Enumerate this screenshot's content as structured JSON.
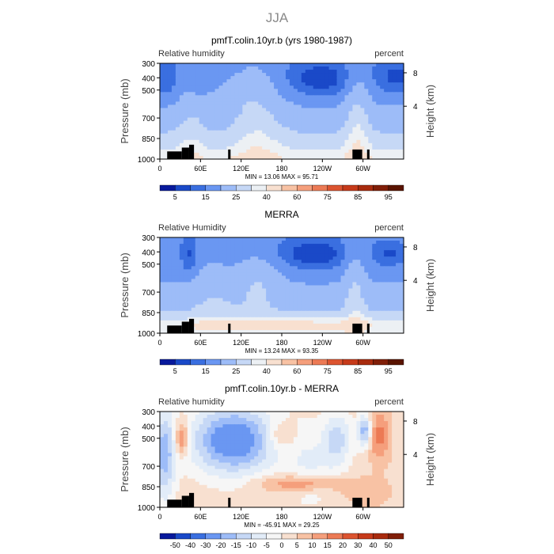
{
  "title": "JJA",
  "chart_data": [
    {
      "type": "heatmap",
      "title": "pmfT.colin.10yr.b (yrs 1980-1987)",
      "left_label": "Relative humidity",
      "right_label": "percent",
      "ylabel": "Pressure (mb)",
      "ylabel_right": "Height (km)",
      "yticks": [
        "300",
        "400",
        "500",
        "700",
        "850",
        "1000"
      ],
      "yticks_right": [
        "8",
        "4"
      ],
      "xticks": [
        "0",
        "60E",
        "120E",
        "180",
        "120W",
        "60W"
      ],
      "stats": "MIN =   13.06   MAX =   95.71",
      "colorbar": {
        "labels": [
          "5",
          "15",
          "25",
          "40",
          "60",
          "75",
          "85",
          "95"
        ],
        "colors": [
          "#08199c",
          "#1a49c8",
          "#3a6fe0",
          "#6a97f2",
          "#9dbcf8",
          "#c6d8f6",
          "#ecf0f4",
          "#f8e0d0",
          "#f8c2a4",
          "#f59f7c",
          "#ec7a55",
          "#dc5430",
          "#c63a1a",
          "#a82b0e",
          "#801e08",
          "#5a1400"
        ]
      },
      "zlim": [
        13.06,
        95.71
      ]
    },
    {
      "type": "heatmap",
      "title": "MERRA",
      "left_label": "Relative Humidity",
      "right_label": "percent",
      "ylabel": "Pressure (mb)",
      "ylabel_right": "Height (km)",
      "yticks": [
        "300",
        "400",
        "500",
        "700",
        "850",
        "1000"
      ],
      "yticks_right": [
        "8",
        "4"
      ],
      "xticks": [
        "0",
        "60E",
        "120E",
        "180",
        "120W",
        "60W"
      ],
      "stats": "MIN =   13.24   MAX =   93.35",
      "colorbar": {
        "labels": [
          "5",
          "15",
          "25",
          "40",
          "60",
          "75",
          "85",
          "95"
        ],
        "colors": [
          "#08199c",
          "#1a49c8",
          "#3a6fe0",
          "#6a97f2",
          "#9dbcf8",
          "#c6d8f6",
          "#ecf0f4",
          "#f8e0d0",
          "#f8c2a4",
          "#f59f7c",
          "#ec7a55",
          "#dc5430",
          "#c63a1a",
          "#a82b0e",
          "#801e08",
          "#5a1400"
        ]
      },
      "zlim": [
        13.24,
        93.35
      ]
    },
    {
      "type": "heatmap",
      "title": "pmfT.colin.10yr.b - MERRA",
      "left_label": "Relative humidity",
      "right_label": "percent",
      "ylabel": "Pressure (mb)",
      "ylabel_right": "Height (km)",
      "yticks": [
        "300",
        "400",
        "500",
        "700",
        "850",
        "1000"
      ],
      "yticks_right": [
        "8",
        "4"
      ],
      "xticks": [
        "0",
        "60E",
        "120E",
        "180",
        "120W",
        "60W"
      ],
      "stats": "MIN =  -45.91   MAX =   29.25",
      "colorbar": {
        "labels": [
          "-50",
          "-40",
          "-30",
          "-20",
          "-15",
          "-10",
          "-5",
          "0",
          "5",
          "10",
          "15",
          "20",
          "30",
          "40",
          "50"
        ],
        "colors": [
          "#08199c",
          "#1a49c8",
          "#3a6fe0",
          "#6a97f2",
          "#9dbcf8",
          "#c6d8f6",
          "#e2ecf8",
          "#f6f6f6",
          "#f8e0d0",
          "#f8c2a4",
          "#f59f7c",
          "#ec7a55",
          "#dc5430",
          "#c63a1a",
          "#a82b0e",
          "#801e08"
        ]
      },
      "zlim": [
        -45.91,
        29.25
      ]
    }
  ]
}
